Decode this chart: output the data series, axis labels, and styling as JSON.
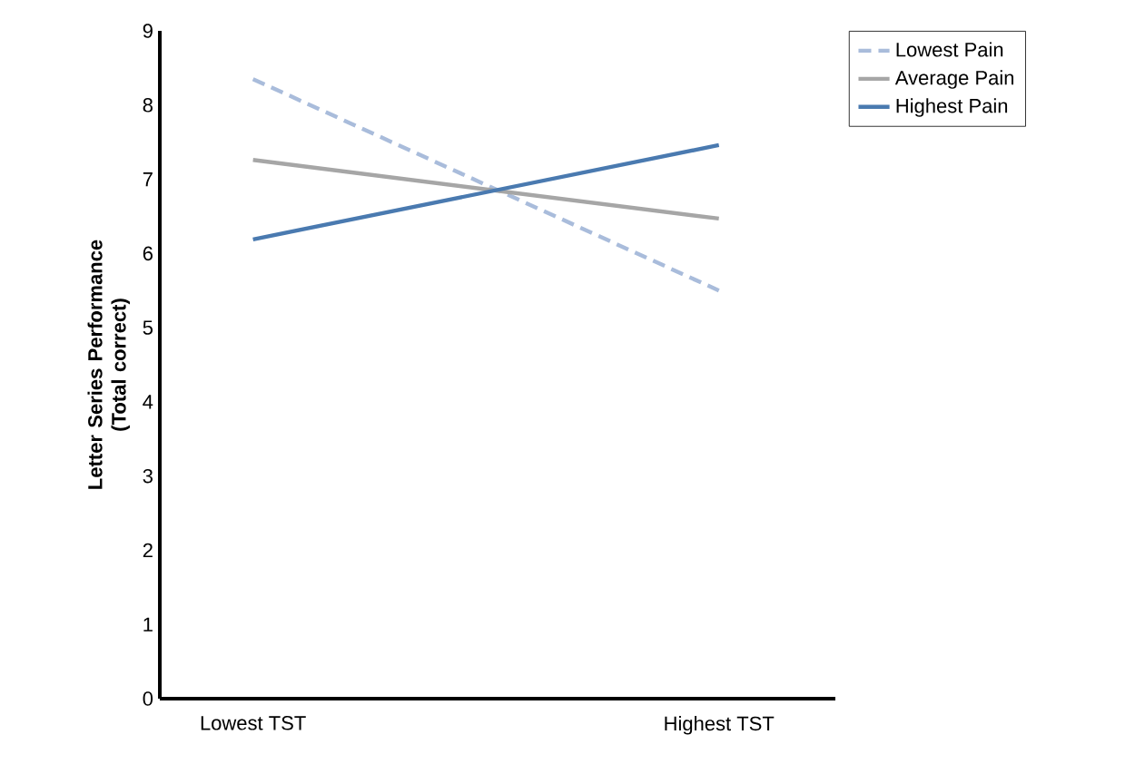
{
  "chart_data": {
    "type": "line",
    "ylabel": "Letter Series Performance (Total correct)",
    "categories": [
      "Lowest TST",
      "Highest TST"
    ],
    "ylim": [
      0,
      9
    ],
    "yticks": [
      0,
      1,
      2,
      3,
      4,
      5,
      6,
      7,
      8,
      9
    ],
    "grid": false,
    "legend": "top right",
    "marker": "none",
    "series": [
      {
        "name": "Lowest Pain",
        "color": "#a9bcdb",
        "line_style": "dashed",
        "values": [
          8.35,
          5.5
        ]
      },
      {
        "name": "Average Pain",
        "color": "#a6a6a6",
        "line_style": "solid",
        "values": [
          7.26,
          6.47
        ]
      },
      {
        "name": "Highest Pain",
        "color": "#4a7ab0",
        "line_style": "solid",
        "values": [
          6.19,
          7.46
        ]
      }
    ]
  }
}
